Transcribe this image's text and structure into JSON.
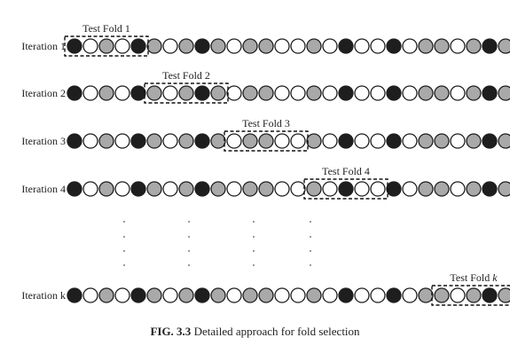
{
  "figure": {
    "caption_number": "FIG. 3.3",
    "caption_text": "Detailed approach for fold selection"
  },
  "circle_sequence": [
    "black",
    "white",
    "gray",
    "white",
    "black",
    "gray",
    "white",
    "gray",
    "black",
    "gray",
    "white",
    "gray",
    "gray",
    "white",
    "white",
    "gray",
    "white",
    "black",
    "white",
    "white",
    "black",
    "white",
    "gray",
    "gray",
    "white",
    "gray",
    "black",
    "gray"
  ],
  "fold_size": 5,
  "iterations": [
    {
      "label": "Iteration 1",
      "fold_label": "Test Fold 1",
      "fold_index": 0
    },
    {
      "label": "Iteration 2",
      "fold_label": "Test Fold 2",
      "fold_index": 1
    },
    {
      "label": "Iteration 3",
      "fold_label": "Test Fold 3",
      "fold_index": 2
    },
    {
      "label": "Iteration 4",
      "fold_label": "Test Fold 4",
      "fold_index": 3
    },
    {
      "label": "Iteration k",
      "fold_label": "Test Fold k",
      "fold_index": "last"
    }
  ],
  "colors": {
    "black": "#1e1e1e",
    "white": "#ffffff",
    "gray": "#a9a9a9",
    "stroke": "#1e1e1e"
  }
}
